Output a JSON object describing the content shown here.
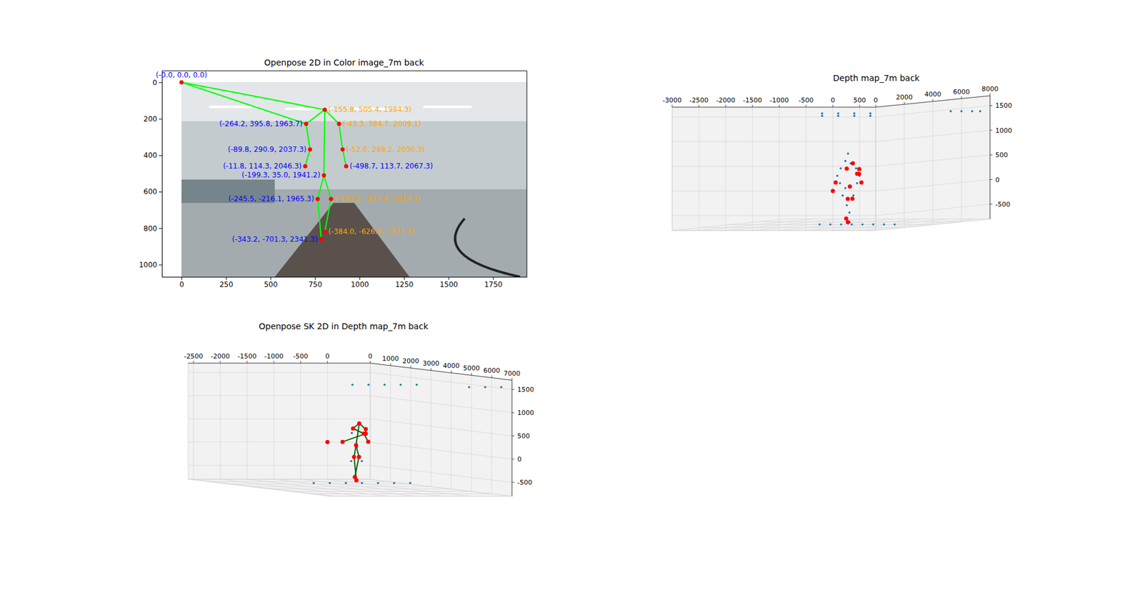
{
  "chart_data": [
    {
      "type": "image",
      "title": "Openpose 2D in Color image_7m back",
      "xlim": [
        -110,
        1940
      ],
      "ylim": [
        1067,
        -63
      ],
      "xticks": [
        0,
        250,
        500,
        750,
        1000,
        1250,
        1500,
        1750
      ],
      "yticks": [
        0,
        200,
        400,
        600,
        800,
        1000
      ],
      "series": [
        {
          "type": "scatter",
          "marker": "o",
          "color": "red",
          "x": [
            805,
            700,
            885,
            722,
            905,
            695,
            925,
            800,
            765,
            840,
            785,
            805,
            0
          ],
          "y": [
            150,
            228,
            228,
            368,
            368,
            460,
            460,
            510,
            640,
            640,
            860,
            820,
            0
          ],
          "labels": [
            "(-155.8, 505.4, 1984.3)",
            "(-264.2, 395.8, 1963.7)",
            "(-43.3, 384.7, 2009.1)",
            "(-89.8, 290.9, 2037.3)",
            "(-52.0, 288.2, 2030.3)",
            "(-11.8, 114.3, 2046.3)",
            "(-498.7, 113.7, 2067.3)",
            "(-199.3, 35.0, 1941.2)",
            "(-245.5, -216.1, 1965.3)",
            "(-172.3, -214.4, 2014.2)",
            "(-343.2, -701.3, 2341.3)",
            "(-384.0, -626.9, 2371.3)",
            "(-0.0, 0.0, 0.0)"
          ],
          "colors": [
            "orange",
            "blue",
            "orange",
            "blue",
            "orange",
            "blue",
            "blue",
            "blue",
            "blue",
            "orange",
            "blue",
            "orange",
            "blue"
          ]
        },
        {
          "type": "line",
          "color": "#00ff00",
          "edges": [
            [
              0,
              1
            ],
            [
              0,
              2
            ],
            [
              1,
              3
            ],
            [
              3,
              5
            ],
            [
              2,
              4
            ],
            [
              4,
              6
            ],
            [
              0,
              7
            ],
            [
              7,
              8
            ],
            [
              7,
              9
            ],
            [
              8,
              10
            ],
            [
              9,
              11
            ],
            [
              12,
              0
            ],
            [
              12,
              1
            ]
          ]
        }
      ]
    },
    {
      "type": "scatter3d",
      "title": "Depth map_7m back",
      "xlim": [
        -3000,
        800
      ],
      "ylim": [
        0,
        8000
      ],
      "zlim": [
        -800,
        1700
      ],
      "xticks": [
        -3000,
        -2500,
        -2000,
        -1500,
        -1000,
        -500,
        0,
        500
      ],
      "yticks": [
        0,
        2000,
        4000,
        6000,
        8000
      ],
      "zticks": [
        -500,
        0,
        500,
        1000,
        1500
      ],
      "series": [
        {
          "marker": "point",
          "color": "#1f77b4",
          "x": [
            -250,
            -300,
            -200,
            -400,
            -100,
            -450,
            -50,
            -400,
            -80,
            -300,
            -350,
            -150,
            -300,
            -250,
            -350,
            -300,
            -900,
            -700,
            -500,
            -300,
            -100,
            100,
            300,
            500,
            -1800,
            -1500,
            -1200,
            -900,
            -1800,
            -1500,
            -1200,
            -900,
            200,
            400,
            600,
            750
          ],
          "y": [
            2000,
            2000,
            2000,
            2050,
            2000,
            2000,
            2050,
            2000,
            2000,
            2000,
            2000,
            2000,
            2100,
            2100,
            2300,
            2300,
            2450,
            2450,
            2450,
            2450,
            2450,
            2450,
            2450,
            2450,
            6000,
            6000,
            6000,
            6000,
            6000,
            6000,
            6000,
            6000,
            7500,
            7500,
            7500,
            7500
          ],
          "z": [
            700,
            550,
            500,
            400,
            400,
            250,
            250,
            100,
            100,
            0,
            -150,
            -150,
            -350,
            -500,
            -650,
            -700,
            -750,
            -750,
            -750,
            -750,
            -750,
            -750,
            -750,
            -750,
            1400,
            1400,
            1400,
            1400,
            1350,
            1350,
            1350,
            1350,
            1400,
            1400,
            1400,
            1400
          ]
        },
        {
          "marker": "o",
          "color": "red",
          "x": [
            -155.8,
            -264.2,
            -43.3,
            -89.8,
            -52.0,
            -11.8,
            -498.7,
            -199.3,
            -245.5,
            -172.3,
            -343.2,
            -384.0,
            0
          ],
          "y": [
            1984.3,
            1963.7,
            2009.1,
            2037.3,
            2030.3,
            2046.3,
            2067.3,
            1941.2,
            1965.3,
            2014.2,
            2341.3,
            2371.3,
            0
          ],
          "z": [
            505.4,
            395.8,
            384.7,
            290.9,
            288.2,
            114.3,
            113.7,
            35.0,
            -216.1,
            -214.4,
            -701.3,
            -626.9,
            0
          ]
        }
      ]
    },
    {
      "type": "scatter3d",
      "title": "Openpose SK 2D in Depth map_7m back",
      "xlim": [
        -2600,
        800
      ],
      "ylim": [
        0,
        7000
      ],
      "zlim": [
        -800,
        1700
      ],
      "xticks": [
        -2500,
        -2000,
        -1500,
        -1000,
        -500,
        0
      ],
      "yticks": [
        0,
        1000,
        2000,
        3000,
        4000,
        5000,
        6000,
        7000
      ],
      "zticks": [
        -500,
        0,
        500,
        1000,
        1500
      ],
      "series": [
        {
          "marker": "point",
          "color": "#1f77b4",
          "x": [
            -1800,
            -1500,
            -1200,
            -900,
            -600,
            0,
            300,
            600,
            -1200,
            -900,
            -600,
            -300,
            0,
            300,
            600,
            -300,
            -200,
            -350,
            -150
          ],
          "y": [
            6000,
            6000,
            6000,
            6000,
            6000,
            7000,
            7000,
            7000,
            2500,
            2500,
            2500,
            2500,
            2500,
            2500,
            2500,
            2000,
            2000,
            2100,
            2100
          ],
          "z": [
            1550,
            1550,
            1550,
            1550,
            1550,
            1550,
            1550,
            1550,
            -750,
            -750,
            -750,
            -750,
            -750,
            -750,
            -750,
            300,
            0,
            -300,
            -300
          ]
        },
        {
          "marker": "o",
          "color": "red",
          "x": [
            -155.8,
            -264.2,
            -43.3,
            -89.8,
            -52.0,
            -11.8,
            -498.7,
            -199.3,
            -245.5,
            -172.3,
            -343.2,
            -384.0,
            0
          ],
          "y": [
            1984.3,
            1963.7,
            2009.1,
            2037.3,
            2030.3,
            2046.3,
            2067.3,
            1941.2,
            1965.3,
            2014.2,
            2341.3,
            2371.3,
            0
          ],
          "z": [
            505.4,
            395.8,
            384.7,
            290.9,
            288.2,
            114.3,
            113.7,
            35.0,
            -216.1,
            -214.4,
            -701.3,
            -626.9,
            0
          ]
        },
        {
          "type": "line",
          "color": "darkgreen",
          "edges": [
            [
              0,
              1
            ],
            [
              0,
              2
            ],
            [
              1,
              3
            ],
            [
              3,
              5
            ],
            [
              2,
              4
            ],
            [
              4,
              6
            ],
            [
              0,
              7
            ],
            [
              7,
              8
            ],
            [
              7,
              9
            ],
            [
              8,
              10
            ],
            [
              9,
              11
            ]
          ]
        }
      ]
    }
  ]
}
